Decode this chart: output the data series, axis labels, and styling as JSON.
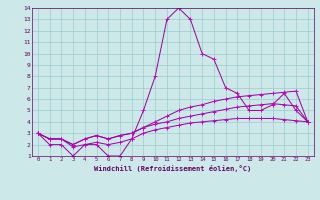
{
  "background_color": "#cce8e8",
  "grid_color": "#99cccc",
  "line_color": "#990099",
  "marker_color": "#cc00cc",
  "xlabel": "Windchill (Refroidissement éolien,°C)",
  "xlabel_color": "#660066",
  "tick_color": "#660066",
  "xlim": [
    -0.5,
    23.5
  ],
  "ylim": [
    1,
    14
  ],
  "xticks": [
    0,
    1,
    2,
    3,
    4,
    5,
    6,
    7,
    8,
    9,
    10,
    11,
    12,
    13,
    14,
    15,
    16,
    17,
    18,
    19,
    20,
    21,
    22,
    23
  ],
  "yticks": [
    1,
    2,
    3,
    4,
    5,
    6,
    7,
    8,
    9,
    10,
    11,
    12,
    13,
    14
  ],
  "series": [
    [
      3.0,
      2.0,
      2.0,
      1.0,
      2.0,
      2.0,
      1.0,
      1.0,
      2.5,
      5.0,
      8.0,
      13.0,
      14.0,
      13.0,
      10.0,
      9.5,
      7.0,
      6.5,
      5.0,
      5.0,
      5.5,
      6.5,
      5.0,
      4.0
    ],
    [
      3.0,
      2.5,
      2.5,
      2.0,
      2.5,
      2.8,
      2.5,
      2.8,
      3.0,
      3.5,
      4.0,
      4.5,
      5.0,
      5.3,
      5.5,
      5.8,
      6.0,
      6.2,
      6.3,
      6.4,
      6.5,
      6.6,
      6.7,
      4.0
    ],
    [
      3.0,
      2.5,
      2.5,
      2.0,
      2.5,
      2.8,
      2.5,
      2.8,
      3.0,
      3.5,
      3.8,
      4.0,
      4.3,
      4.5,
      4.7,
      4.9,
      5.1,
      5.3,
      5.4,
      5.5,
      5.6,
      5.5,
      5.4,
      4.0
    ],
    [
      3.0,
      2.5,
      2.5,
      1.8,
      2.0,
      2.2,
      2.0,
      2.2,
      2.5,
      3.0,
      3.3,
      3.5,
      3.7,
      3.9,
      4.0,
      4.1,
      4.2,
      4.3,
      4.3,
      4.3,
      4.3,
      4.2,
      4.1,
      4.0
    ]
  ]
}
